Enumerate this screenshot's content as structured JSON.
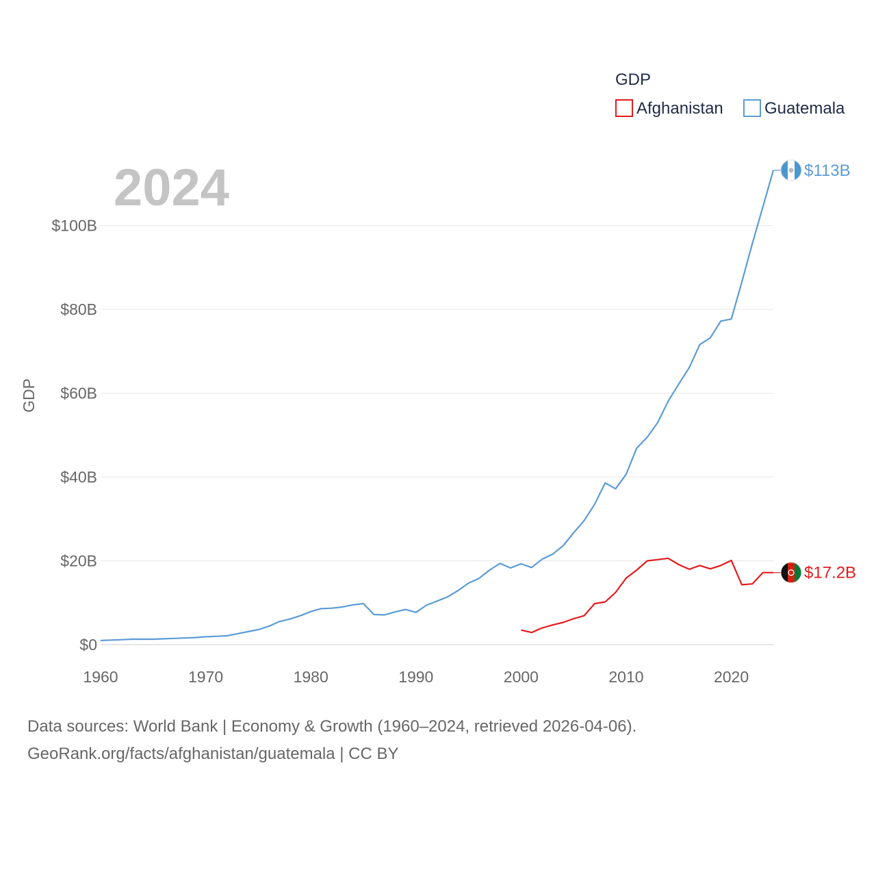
{
  "chart_data": {
    "type": "line",
    "title": "GDP",
    "current_year": "2024",
    "xlabel": "",
    "ylabel": "GDP",
    "xlim": [
      1960,
      2024
    ],
    "ylim": [
      0,
      113
    ],
    "x_ticks": [
      1960,
      1970,
      1980,
      1990,
      2000,
      2010,
      2020
    ],
    "x_tick_labels": [
      "1960",
      "1970",
      "1980",
      "1990",
      "2000",
      "2010",
      "2020"
    ],
    "y_ticks": [
      0,
      20,
      40,
      60,
      80,
      100
    ],
    "y_tick_labels": [
      "$0",
      "$20B",
      "$40B",
      "$60B",
      "$80B",
      "$100B"
    ],
    "legend": {
      "title": "GDP",
      "position": "top-right"
    },
    "series": [
      {
        "name": "Afghanistan",
        "color": "#e41a1c",
        "end_label": "$17.2B",
        "flag": "afghanistan-flag-icon",
        "x": [
          2000,
          2001,
          2002,
          2003,
          2004,
          2005,
          2006,
          2007,
          2008,
          2009,
          2010,
          2011,
          2012,
          2013,
          2014,
          2015,
          2016,
          2017,
          2018,
          2019,
          2020,
          2021,
          2022,
          2023,
          2024
        ],
        "values": [
          3.5,
          2.9,
          4.0,
          4.7,
          5.3,
          6.2,
          6.9,
          9.8,
          10.2,
          12.5,
          15.9,
          17.8,
          20.0,
          20.3,
          20.6,
          19.1,
          18.0,
          18.9,
          18.1,
          18.9,
          20.1,
          14.3,
          14.5,
          17.2,
          17.2
        ]
      },
      {
        "name": "Guatemala",
        "color": "#5b9bd5",
        "end_label": "$113B",
        "flag": "guatemala-flag-icon",
        "x": [
          1960,
          1961,
          1962,
          1963,
          1964,
          1965,
          1966,
          1967,
          1968,
          1969,
          1970,
          1971,
          1972,
          1973,
          1974,
          1975,
          1976,
          1977,
          1978,
          1979,
          1980,
          1981,
          1982,
          1983,
          1984,
          1985,
          1986,
          1987,
          1988,
          1989,
          1990,
          1991,
          1992,
          1993,
          1994,
          1995,
          1996,
          1997,
          1998,
          1999,
          2000,
          2001,
          2002,
          2003,
          2004,
          2005,
          2006,
          2007,
          2008,
          2009,
          2010,
          2011,
          2012,
          2013,
          2014,
          2015,
          2016,
          2017,
          2018,
          2019,
          2020,
          2021,
          2022,
          2023,
          2024
        ],
        "values": [
          1.0,
          1.1,
          1.2,
          1.3,
          1.3,
          1.3,
          1.4,
          1.5,
          1.6,
          1.7,
          1.9,
          2.0,
          2.1,
          2.6,
          3.1,
          3.6,
          4.4,
          5.5,
          6.1,
          6.9,
          7.9,
          8.6,
          8.7,
          9.0,
          9.5,
          9.8,
          7.2,
          7.1,
          7.8,
          8.4,
          7.7,
          9.4,
          10.4,
          11.4,
          12.9,
          14.7,
          15.8,
          17.8,
          19.4,
          18.3,
          19.3,
          18.4,
          20.4,
          21.6,
          23.6,
          26.7,
          29.6,
          33.5,
          38.6,
          37.2,
          40.7,
          46.9,
          49.5,
          53.0,
          58.1,
          62.2,
          66.1,
          71.6,
          73.2,
          77.2,
          77.7,
          86.5,
          95.7,
          104.4,
          113.2
        ]
      }
    ]
  },
  "footer": {
    "line1": "Data sources: World Bank | Economy & Growth (1960–2024, retrieved 2026-04-06).",
    "line2": "GeoRank.org/facts/afghanistan/guatemala | CC BY"
  }
}
